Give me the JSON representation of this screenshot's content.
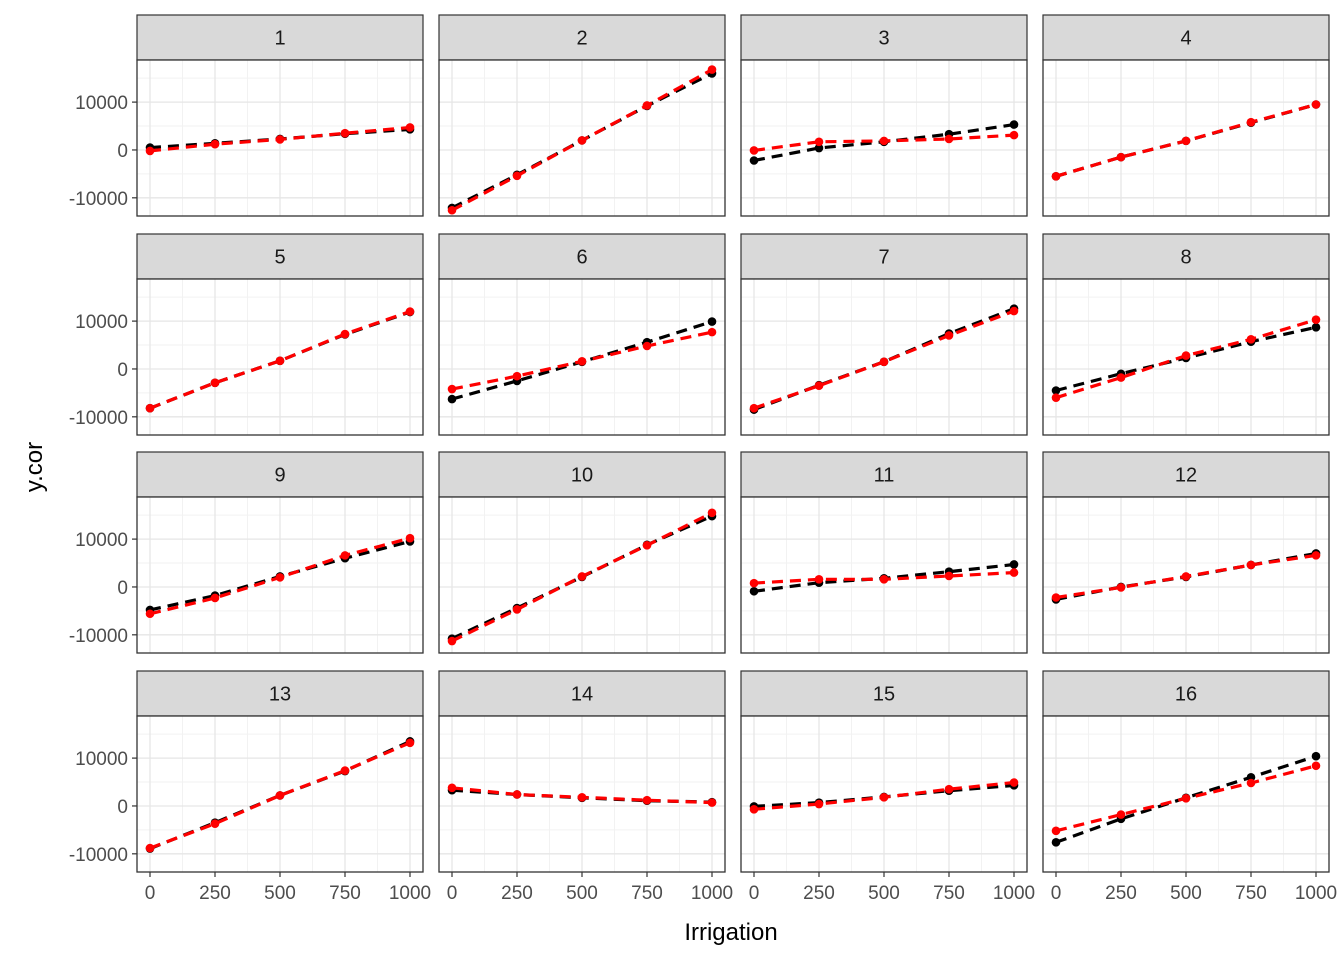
{
  "chart_data": {
    "type": "line",
    "xlabel": "Irrigation",
    "ylabel": "y.cor",
    "x_ticks": [
      "0",
      "250",
      "500",
      "750",
      "1000"
    ],
    "y_ticks": [
      "10000",
      "0",
      "-10000"
    ],
    "xlim": [
      -50,
      1050
    ],
    "ylim": [
      -13800,
      18800
    ],
    "x": [
      0,
      250,
      500,
      750,
      1000
    ],
    "grid": true,
    "legend": "none",
    "series_colors": {
      "black": "#000000",
      "red": "#ff0000"
    },
    "facets": [
      {
        "label": "1",
        "black": [
          500,
          1400,
          2300,
          3400,
          4300
        ],
        "red": [
          -200,
          1200,
          2200,
          3500,
          4700
        ]
      },
      {
        "label": "2",
        "black": [
          -12100,
          -5200,
          2000,
          9200,
          16000
        ],
        "red": [
          -12600,
          -5400,
          2000,
          9300,
          16800
        ]
      },
      {
        "label": "3",
        "black": [
          -2200,
          400,
          1700,
          3300,
          5300
        ],
        "red": [
          -100,
          1700,
          1900,
          2300,
          3100
        ]
      },
      {
        "label": "4",
        "black": [
          -5500,
          -1500,
          1900,
          5700,
          9500
        ],
        "red": [
          -5500,
          -1500,
          1900,
          5800,
          9500
        ]
      },
      {
        "label": "5",
        "black": [
          -8200,
          -2900,
          1700,
          7200,
          11900
        ],
        "red": [
          -8200,
          -2900,
          1700,
          7300,
          12000
        ]
      },
      {
        "label": "6",
        "black": [
          -6300,
          -2500,
          1500,
          5600,
          9900
        ],
        "red": [
          -4200,
          -1500,
          1600,
          4800,
          7700
        ]
      },
      {
        "label": "7",
        "black": [
          -8500,
          -3400,
          1500,
          7400,
          12600
        ],
        "red": [
          -8200,
          -3500,
          1500,
          7000,
          12100
        ]
      },
      {
        "label": "8",
        "black": [
          -4500,
          -1000,
          2300,
          5700,
          8700
        ],
        "red": [
          -6000,
          -1800,
          2800,
          6200,
          10300
        ]
      },
      {
        "label": "9",
        "black": [
          -4800,
          -1800,
          2200,
          6000,
          9500
        ],
        "red": [
          -5600,
          -2300,
          2000,
          6600,
          10200
        ]
      },
      {
        "label": "10",
        "black": [
          -10800,
          -4400,
          2100,
          8800,
          14800
        ],
        "red": [
          -11300,
          -4700,
          2200,
          8700,
          15500
        ]
      },
      {
        "label": "11",
        "black": [
          -900,
          900,
          1800,
          3200,
          4700
        ],
        "red": [
          800,
          1600,
          1600,
          2300,
          3000
        ]
      },
      {
        "label": "12",
        "black": [
          -2600,
          0,
          2100,
          4600,
          7000
        ],
        "red": [
          -2200,
          -100,
          2200,
          4600,
          6600
        ]
      },
      {
        "label": "13",
        "black": [
          -8900,
          -3500,
          2200,
          7300,
          13500
        ],
        "red": [
          -8800,
          -3700,
          2200,
          7400,
          13200
        ]
      },
      {
        "label": "14",
        "black": [
          3300,
          2400,
          1700,
          1100,
          800
        ],
        "red": [
          3800,
          2400,
          1800,
          1200,
          700
        ]
      },
      {
        "label": "15",
        "black": [
          -100,
          700,
          1900,
          3200,
          4300
        ],
        "red": [
          -700,
          400,
          1800,
          3500,
          4900
        ]
      },
      {
        "label": "16",
        "black": [
          -7600,
          -2700,
          1700,
          6000,
          10400
        ],
        "red": [
          -5200,
          -1800,
          1600,
          4800,
          8400
        ]
      }
    ]
  }
}
